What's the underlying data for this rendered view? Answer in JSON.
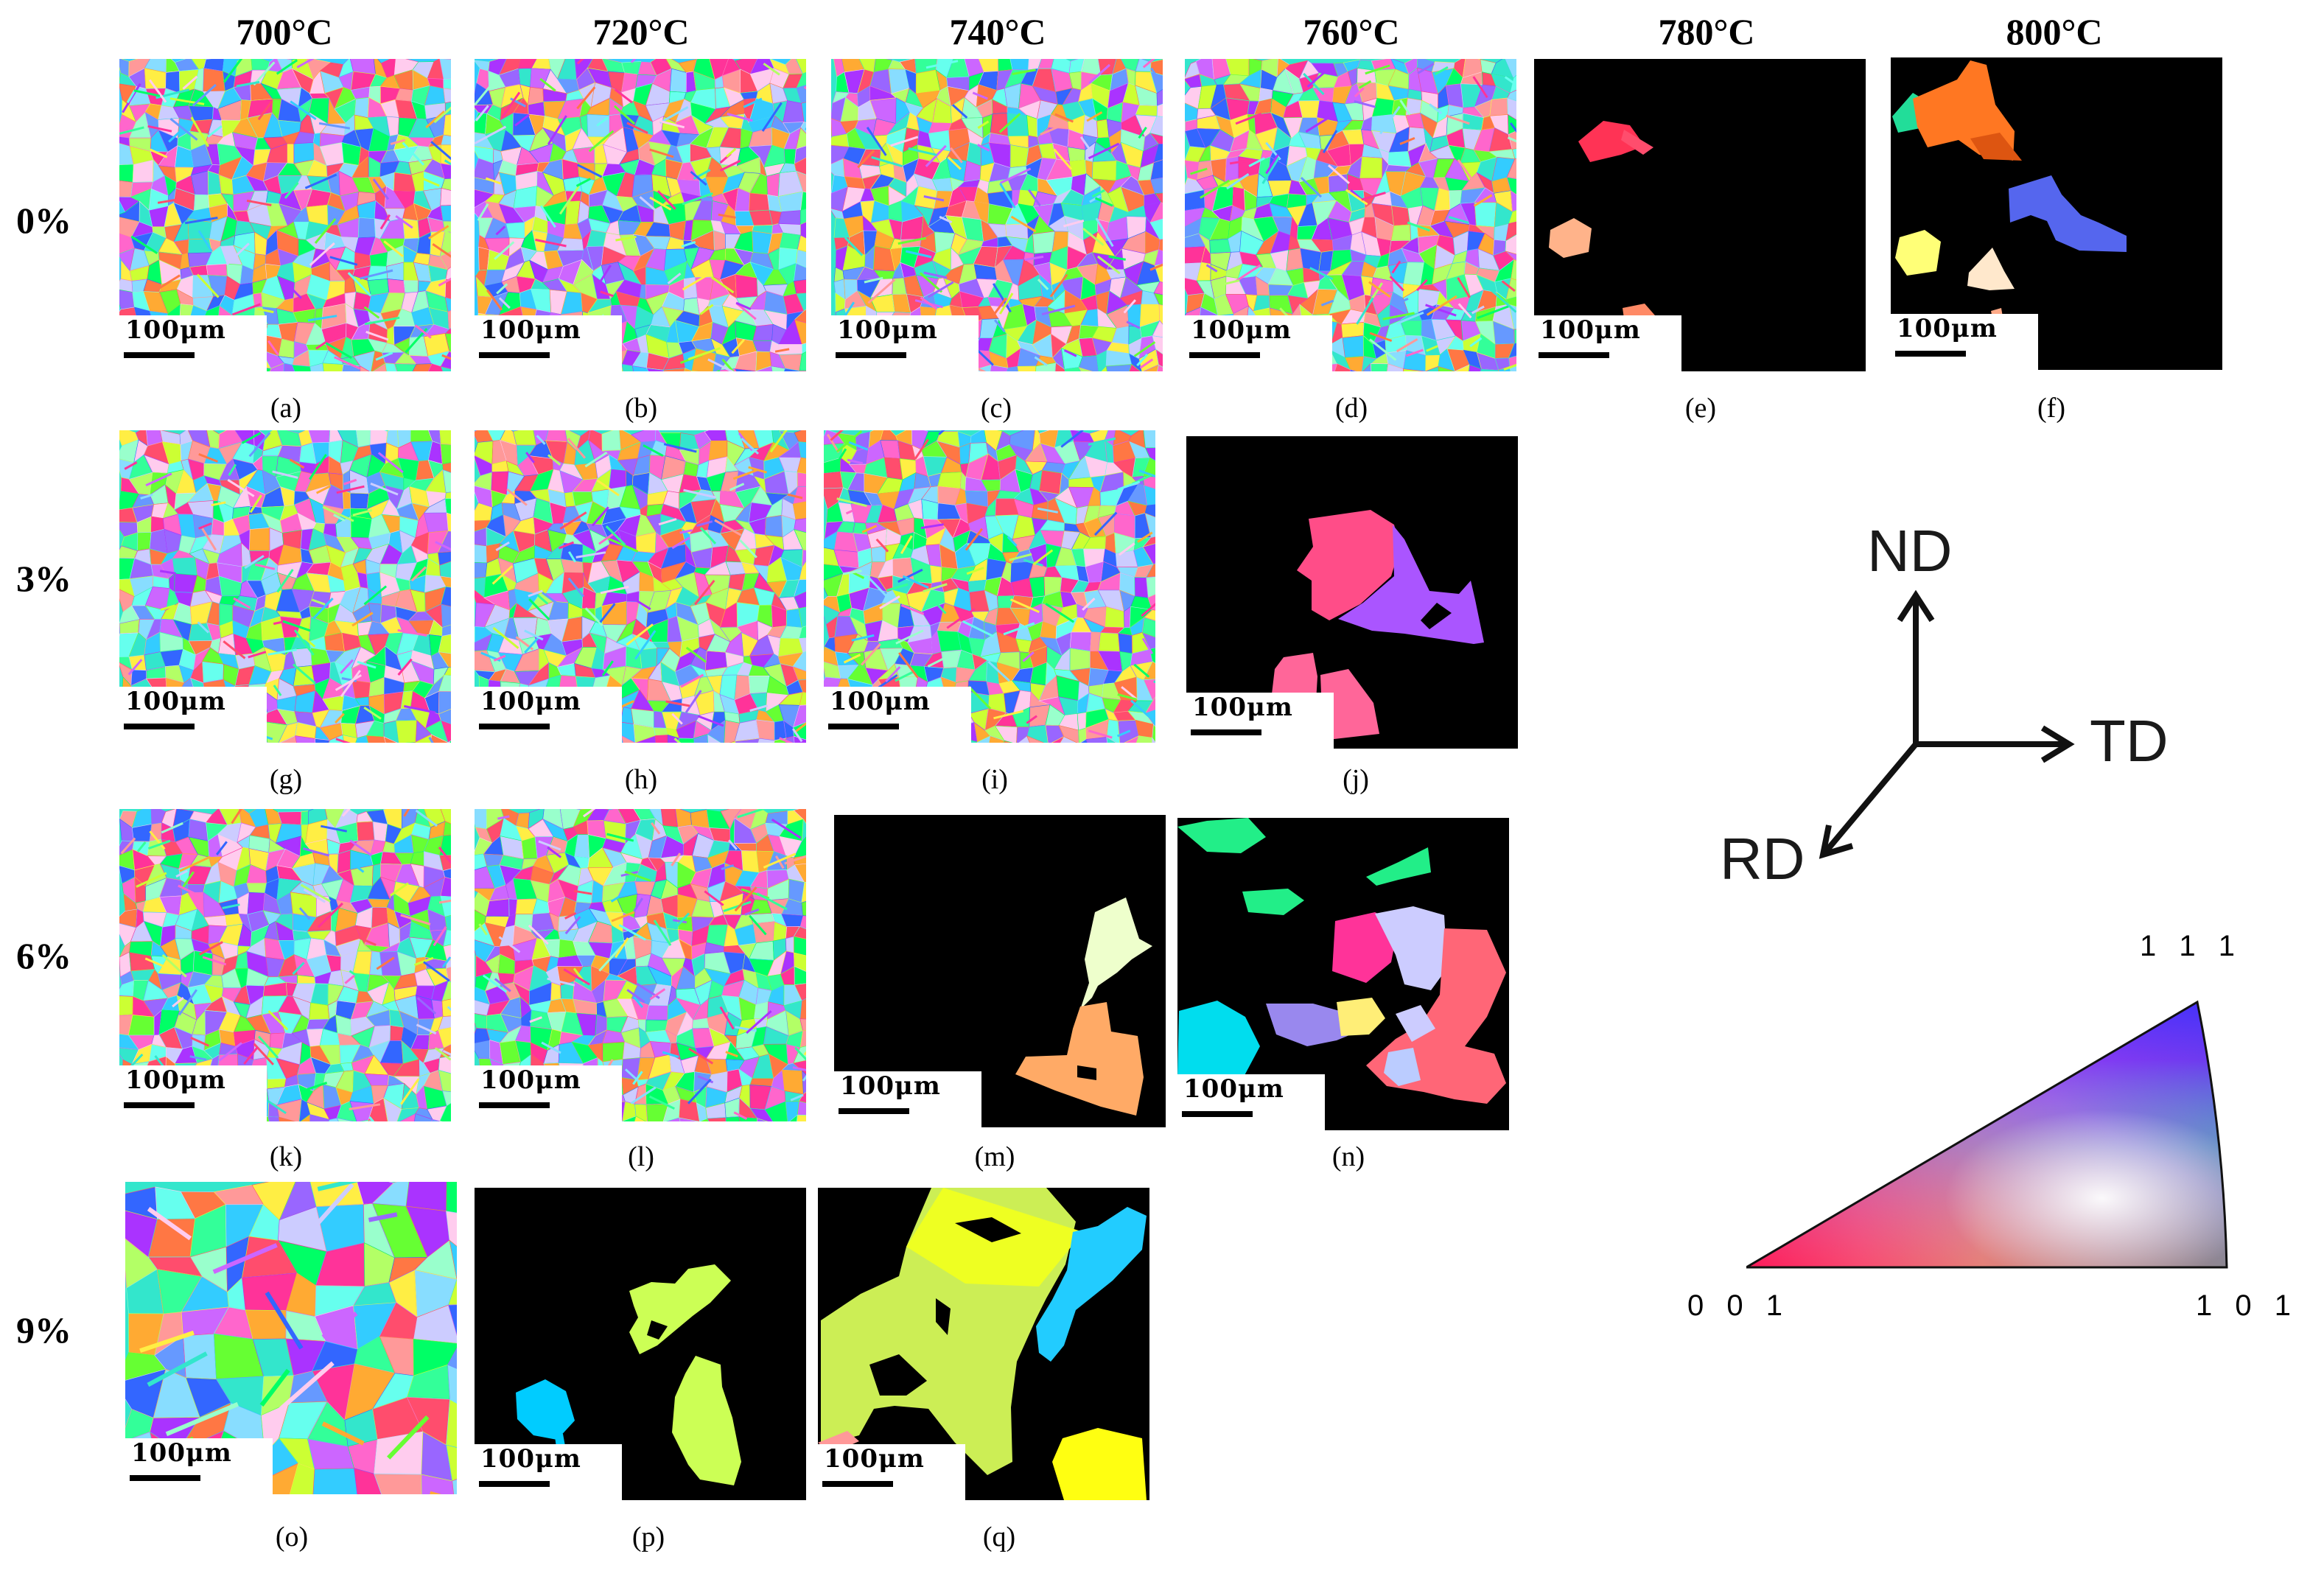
{
  "columns": [
    "700°C",
    "720°C",
    "740°C",
    "760°C",
    "780°C",
    "800°C"
  ],
  "rows": [
    "0%",
    "3%",
    "6%",
    "9%"
  ],
  "scale_bar": "100μm",
  "panels": [
    {
      "id": "a",
      "caption": "(a)",
      "type": "grains",
      "seed": 11
    },
    {
      "id": "b",
      "caption": "(b)",
      "type": "grains",
      "seed": 23
    },
    {
      "id": "c",
      "caption": "(c)",
      "type": "grains",
      "seed": 37
    },
    {
      "id": "d",
      "caption": "(d)",
      "type": "grains",
      "seed": 41
    },
    {
      "id": "e",
      "caption": "(e)",
      "type": "sparse"
    },
    {
      "id": "f",
      "caption": "(f)",
      "type": "sparse"
    },
    {
      "id": "g",
      "caption": "(g)",
      "type": "grains",
      "seed": 53
    },
    {
      "id": "h",
      "caption": "(h)",
      "type": "grains",
      "seed": 67
    },
    {
      "id": "i",
      "caption": "(i)",
      "type": "grains",
      "seed": 71
    },
    {
      "id": "j",
      "caption": "(j)",
      "type": "sparse"
    },
    {
      "id": "k",
      "caption": "(k)",
      "type": "grains",
      "seed": 83
    },
    {
      "id": "l",
      "caption": "(l)",
      "type": "grains",
      "seed": 97
    },
    {
      "id": "m",
      "caption": "(m)",
      "type": "sparse"
    },
    {
      "id": "n",
      "caption": "(n)",
      "type": "sparse"
    },
    {
      "id": "o",
      "caption": "(o)",
      "type": "coarse",
      "seed": 101
    },
    {
      "id": "p",
      "caption": "(p)",
      "type": "sparse"
    },
    {
      "id": "q",
      "caption": "(q)",
      "type": "sparse"
    }
  ],
  "axes": {
    "nd": "ND",
    "td": "TD",
    "rd": "RD"
  },
  "ipf": {
    "top": "1 1 1",
    "left": "0 0 1",
    "right": "1 0 1"
  },
  "grain_palette": [
    "#ff4d6d",
    "#ff66cc",
    "#cc66ff",
    "#9966ff",
    "#6699ff",
    "#33ccff",
    "#33e6cc",
    "#33ff99",
    "#66ff33",
    "#ccff33",
    "#ffee44",
    "#ffaa33",
    "#ff7744",
    "#ff3399",
    "#99ffcc",
    "#ccccff",
    "#ffccee",
    "#66ffee",
    "#aa33ff",
    "#3366ff",
    "#00ff66",
    "#ff9999",
    "#b3ff66",
    "#88ddff"
  ],
  "colors": {
    "black": "#000000",
    "white": "#ffffff"
  }
}
